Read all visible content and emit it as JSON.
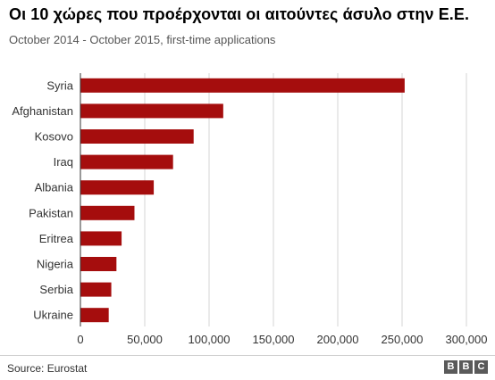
{
  "header": {
    "title": "Οι 10 χώρες που προέρχονται οι αιτούντες άσυλο στην Ε.Ε.",
    "subtitle": "October 2014 - October 2015, first-time applications"
  },
  "footer": {
    "source": "Source: Eurostat",
    "logo_letters": [
      "B",
      "B",
      "C"
    ]
  },
  "colors": {
    "bar": "#a50d0d",
    "grid": "#d6d6d6",
    "axis": "#333333"
  },
  "chart_data": {
    "type": "bar",
    "orientation": "horizontal",
    "title": "Οι 10 χώρες που προέρχονται οι αιτούντες άσυλο στην Ε.Ε.",
    "subtitle": "October 2014 - October 2015, first-time applications",
    "categories": [
      "Syria",
      "Afghanistan",
      "Kosovo",
      "Iraq",
      "Albania",
      "Pakistan",
      "Eritrea",
      "Nigeria",
      "Serbia",
      "Ukraine"
    ],
    "values": [
      252000,
      111000,
      88000,
      72000,
      57000,
      42000,
      32000,
      28000,
      24000,
      22000
    ],
    "xlim": [
      0,
      300000
    ],
    "xticks": [
      0,
      50000,
      100000,
      150000,
      200000,
      250000,
      300000
    ],
    "xtick_labels": [
      "0",
      "50,000",
      "100,000",
      "150,000",
      "200,000",
      "250,000",
      "300,000"
    ],
    "grid": true,
    "xlabel": "",
    "ylabel": ""
  }
}
